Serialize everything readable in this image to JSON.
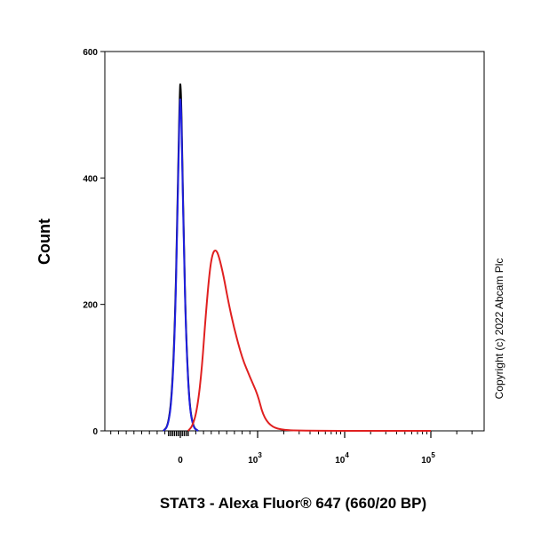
{
  "chart_data": {
    "type": "line",
    "title": "",
    "xlabel": "STAT3 - Alexa Fluor® 647 (660/20 BP)",
    "ylabel": "Count",
    "x_scale": "biexponential",
    "ylim": [
      0,
      600
    ],
    "y_ticks": [
      "0",
      "200",
      "400",
      "600"
    ],
    "x_ticks": [
      {
        "value": 0,
        "base": "0",
        "exp": ""
      },
      {
        "value": 1000,
        "base": "10",
        "exp": "3"
      },
      {
        "value": 10000,
        "base": "10",
        "exp": "4"
      },
      {
        "value": 100000,
        "base": "10",
        "exp": "5"
      }
    ],
    "grid": false,
    "series": [
      {
        "color": "#000000",
        "x": [
          -220,
          -160,
          -110,
          -70,
          -40,
          -20,
          -5,
          0,
          10,
          25,
          45,
          75,
          115,
          165,
          230
        ],
        "y": [
          0,
          8,
          55,
          170,
          330,
          470,
          540,
          552,
          530,
          440,
          300,
          150,
          45,
          6,
          0
        ]
      },
      {
        "color": "#2020e0",
        "x": [
          -220,
          -160,
          -110,
          -70,
          -40,
          -20,
          -5,
          0,
          10,
          25,
          45,
          75,
          115,
          165,
          230
        ],
        "y": [
          0,
          7,
          50,
          160,
          315,
          455,
          520,
          527,
          510,
          425,
          290,
          145,
          42,
          5,
          0
        ]
      },
      {
        "color": "#e02020",
        "x": [
          100,
          160,
          220,
          280,
          330,
          380,
          420,
          460,
          500,
          560,
          620,
          700,
          800,
          900,
          1000,
          1150,
          1400,
          1800,
          3000,
          100000
        ],
        "y": [
          0,
          8,
          35,
          100,
          185,
          255,
          282,
          287,
          276,
          245,
          205,
          160,
          115,
          85,
          58,
          25,
          8,
          2,
          0,
          0
        ]
      }
    ]
  },
  "copyright": "Copyright (c) 2022 Abcam Plc"
}
